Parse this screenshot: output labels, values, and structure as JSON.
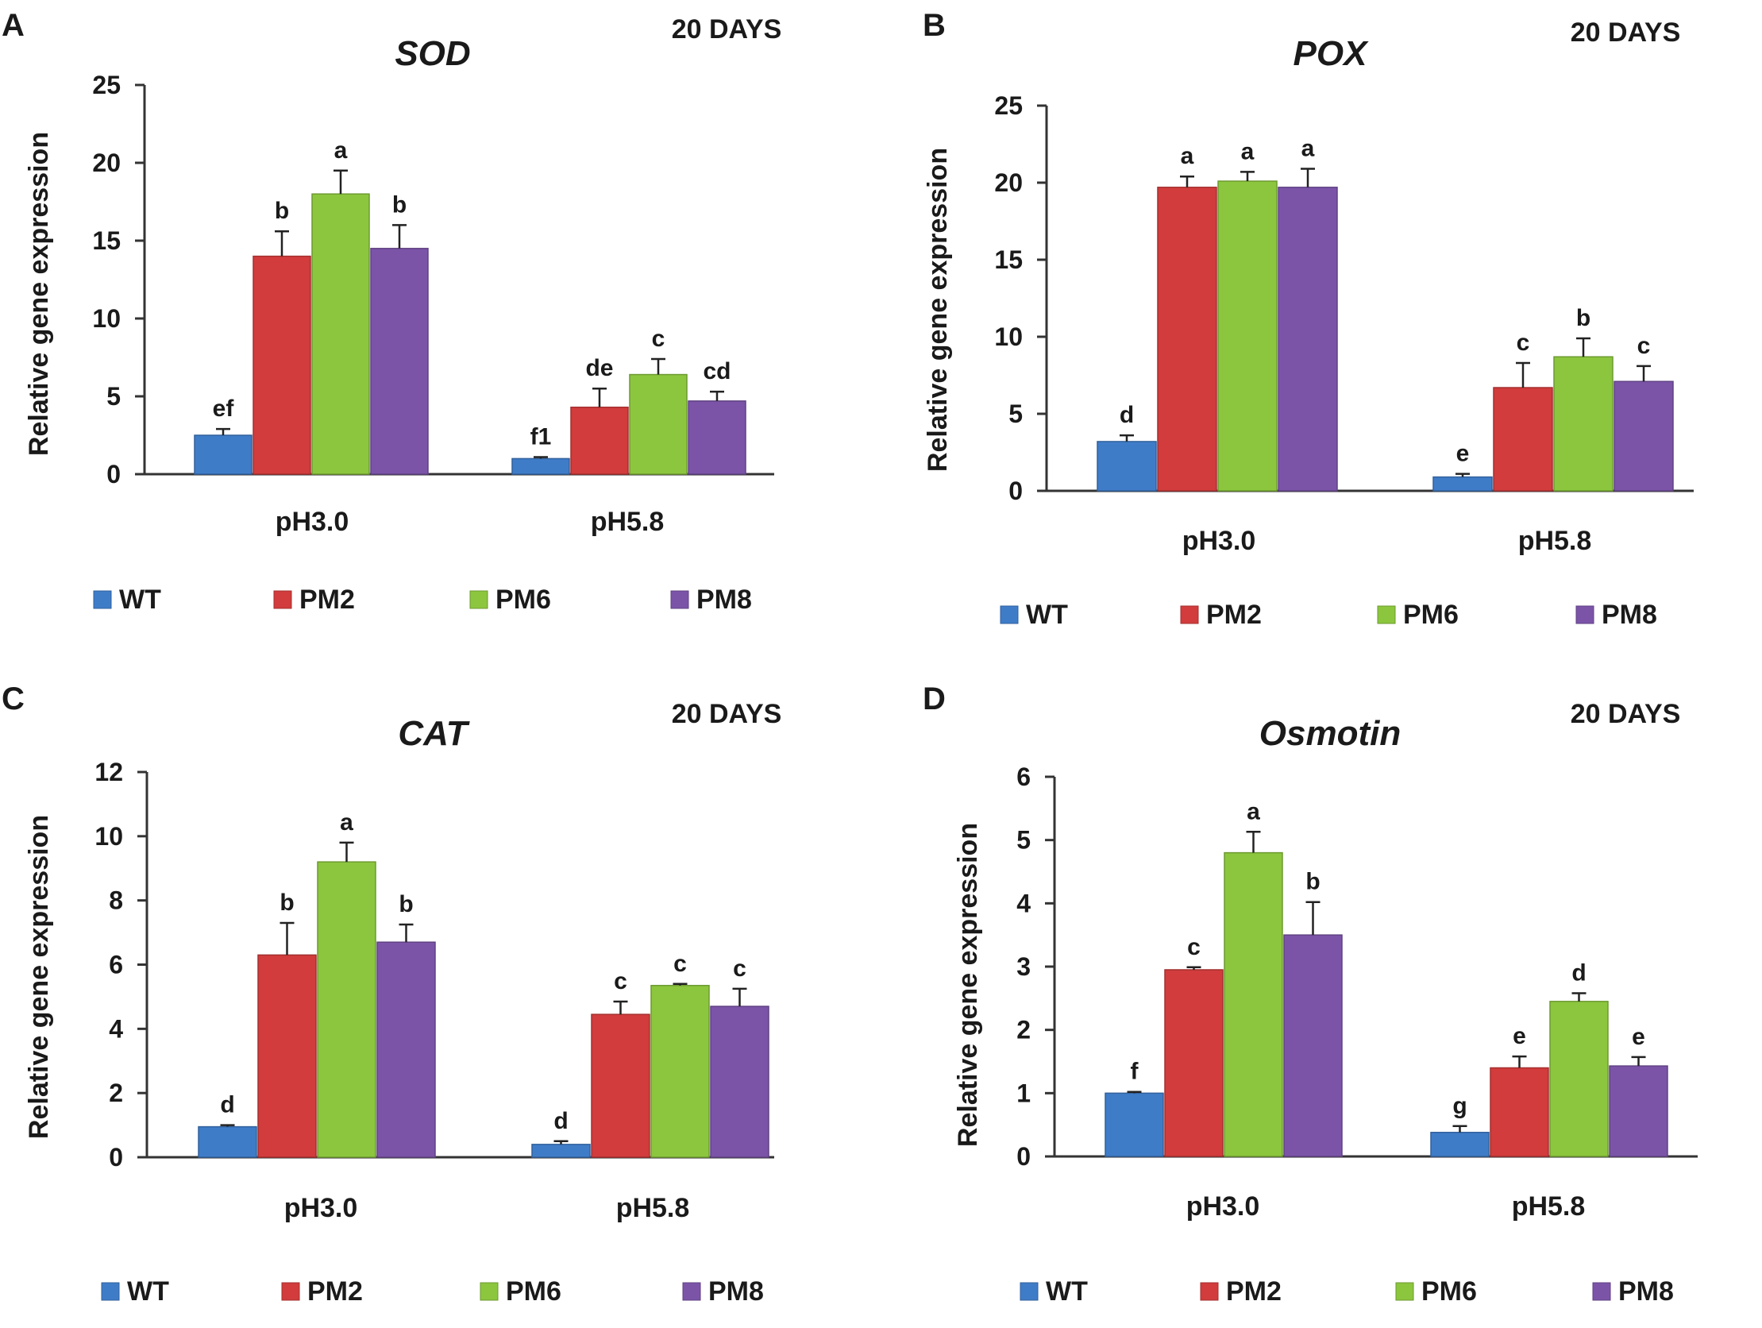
{
  "figure": {
    "series_colors": {
      "WT": "#3f7cc8",
      "PM2": "#d23c3c",
      "PM6": "#8cc63e",
      "PM8": "#7b54a8"
    },
    "axis_color": "#333333"
  },
  "chart_data": [
    {
      "panel": "A",
      "type": "bar",
      "title": "SOD",
      "days_label": "20 DAYS",
      "ylabel": "Relative gene expression",
      "xlabel": "",
      "ylim": [
        0,
        25
      ],
      "yticks": [
        0,
        5,
        10,
        15,
        20,
        25
      ],
      "categories": [
        "pH3.0",
        "pH5.8"
      ],
      "series": [
        {
          "name": "WT",
          "values": [
            2.5,
            1.0
          ],
          "errors": [
            0.4,
            0.1
          ],
          "letters": [
            "ef",
            "f1"
          ]
        },
        {
          "name": "PM2",
          "values": [
            14.0,
            4.3
          ],
          "errors": [
            1.6,
            1.2
          ],
          "letters": [
            "b",
            "de"
          ]
        },
        {
          "name": "PM6",
          "values": [
            18.0,
            6.4
          ],
          "errors": [
            1.5,
            1.0
          ],
          "letters": [
            "a",
            "c"
          ]
        },
        {
          "name": "PM8",
          "values": [
            14.5,
            4.7
          ],
          "errors": [
            1.5,
            0.6
          ],
          "letters": [
            "b",
            "cd"
          ]
        }
      ],
      "legend": [
        "WT",
        "PM2",
        "PM6",
        "PM8"
      ],
      "legend_position": "bottom"
    },
    {
      "panel": "B",
      "type": "bar",
      "title": "POX",
      "days_label": "20 DAYS",
      "ylabel": "Relative gene expression",
      "xlabel": "",
      "ylim": [
        0,
        25
      ],
      "yticks": [
        0,
        5,
        10,
        15,
        20,
        25
      ],
      "categories": [
        "pH3.0",
        "pH5.8"
      ],
      "series": [
        {
          "name": "WT",
          "values": [
            3.2,
            0.9
          ],
          "errors": [
            0.4,
            0.2
          ],
          "letters": [
            "d",
            "e"
          ]
        },
        {
          "name": "PM2",
          "values": [
            19.7,
            6.7
          ],
          "errors": [
            0.7,
            1.6
          ],
          "letters": [
            "a",
            "c"
          ]
        },
        {
          "name": "PM6",
          "values": [
            20.1,
            8.7
          ],
          "errors": [
            0.6,
            1.2
          ],
          "letters": [
            "a",
            "b"
          ]
        },
        {
          "name": "PM8",
          "values": [
            19.7,
            7.1
          ],
          "errors": [
            1.2,
            1.0
          ],
          "letters": [
            "a",
            "c"
          ]
        }
      ],
      "legend": [
        "WT",
        "PM2",
        "PM6",
        "PM8"
      ],
      "legend_position": "bottom"
    },
    {
      "panel": "C",
      "type": "bar",
      "title": "CAT",
      "days_label": "20 DAYS",
      "ylabel": "Relative gene expression",
      "xlabel": "",
      "ylim": [
        0,
        12
      ],
      "yticks": [
        0,
        2,
        4,
        6,
        8,
        10,
        12
      ],
      "categories": [
        "pH3.0",
        "pH5.8"
      ],
      "series": [
        {
          "name": "WT",
          "values": [
            0.95,
            0.4
          ],
          "errors": [
            0.05,
            0.1
          ],
          "letters": [
            "d",
            "d"
          ]
        },
        {
          "name": "PM2",
          "values": [
            6.3,
            4.45
          ],
          "errors": [
            1.0,
            0.4
          ],
          "letters": [
            "b",
            "c"
          ]
        },
        {
          "name": "PM6",
          "values": [
            9.2,
            5.35
          ],
          "errors": [
            0.6,
            0.05
          ],
          "letters": [
            "a",
            "c"
          ]
        },
        {
          "name": "PM8",
          "values": [
            6.7,
            4.7
          ],
          "errors": [
            0.55,
            0.55
          ],
          "letters": [
            "b",
            "c"
          ]
        }
      ],
      "legend": [
        "WT",
        "PM2",
        "PM6",
        "PM8"
      ],
      "legend_position": "bottom"
    },
    {
      "panel": "D",
      "type": "bar",
      "title": "Osmotin",
      "days_label": "20 DAYS",
      "ylabel": "Relative gene expression",
      "xlabel": "",
      "ylim": [
        0,
        6
      ],
      "yticks": [
        0,
        1,
        2,
        3,
        4,
        5,
        6
      ],
      "categories": [
        "pH3.0",
        "pH5.8"
      ],
      "series": [
        {
          "name": "WT",
          "values": [
            1.0,
            0.38
          ],
          "errors": [
            0.02,
            0.1
          ],
          "letters": [
            "f",
            "g"
          ]
        },
        {
          "name": "PM2",
          "values": [
            2.95,
            1.4
          ],
          "errors": [
            0.04,
            0.18
          ],
          "letters": [
            "c",
            "e"
          ]
        },
        {
          "name": "PM6",
          "values": [
            4.8,
            2.45
          ],
          "errors": [
            0.33,
            0.13
          ],
          "letters": [
            "a",
            "d"
          ]
        },
        {
          "name": "PM8",
          "values": [
            3.5,
            1.43
          ],
          "errors": [
            0.52,
            0.14
          ],
          "letters": [
            "b",
            "e"
          ]
        }
      ],
      "legend": [
        "WT",
        "PM2",
        "PM6",
        "PM8"
      ],
      "legend_position": "bottom"
    }
  ]
}
